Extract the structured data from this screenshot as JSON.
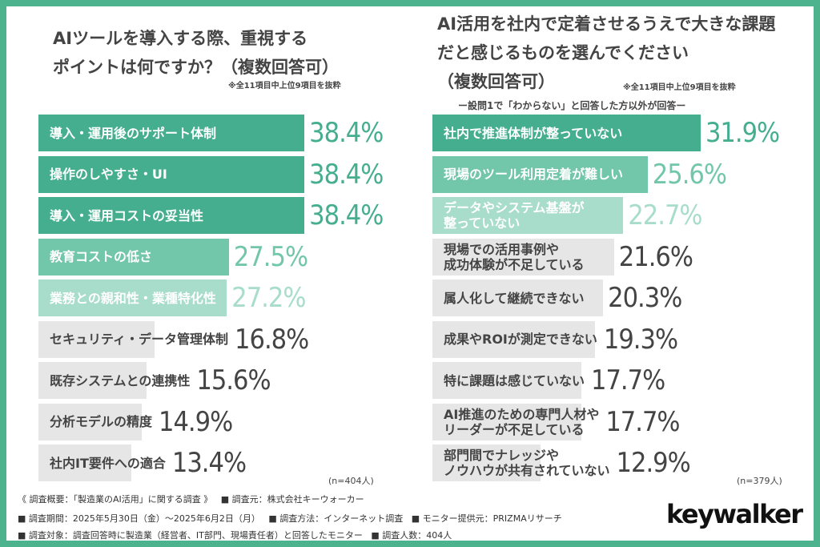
{
  "chart_data": [
    {
      "type": "bar",
      "orientation": "horizontal",
      "title": "AIツールを導入する際、重視する\nポイントは何ですか？（複数回答可）",
      "note": "※全11項目中上位9項目を抜粋",
      "sample": "(n=404人)",
      "categories": [
        "導入・運用後のサポート体制",
        "操作のしやすさ・UI",
        "導入・運用コストの妥当性",
        "教育コストの低さ",
        "業務との親和性・業種特化性",
        "セキュリティ・データ管理体制",
        "既存システムとの連携性",
        "分析モデルの精度",
        "社内IT要件への適合"
      ],
      "values": [
        38.4,
        38.4,
        38.4,
        27.5,
        27.2,
        16.8,
        15.6,
        14.9,
        13.4
      ],
      "labels": [
        "38.4%",
        "38.4%",
        "38.4%",
        "27.5%",
        "27.2%",
        "16.8%",
        "15.6%",
        "14.9%",
        "13.4%"
      ]
    },
    {
      "type": "bar",
      "orientation": "horizontal",
      "title": "AI活用を社内で定着させるうえで大きな課題\nだと感じるものを選んでください\n（複数回答可）",
      "note": "※全11項目中上位9項目を抜粋",
      "subtitle": "ー設問1で「わからない」と回答した方以外が回答ー",
      "sample": "(n=379人)",
      "categories": [
        "社内で推進体制が整っていない",
        "現場のツール利用定着が難しい",
        "データやシステム基盤が\n整っていない",
        "現場での活用事例や\n成功体験が不足している",
        "属人化して継続できない",
        "成果やROIが測定できない",
        "特に課題は感じていない",
        "AI推進のための専門人材や\nリーダーが不足している",
        "部門間でナレッジや\nノウハウが共有されていない"
      ],
      "values": [
        31.9,
        25.6,
        22.7,
        21.6,
        20.3,
        19.3,
        17.7,
        17.7,
        12.9
      ],
      "labels": [
        "31.9%",
        "25.6%",
        "22.7%",
        "21.6%",
        "20.3%",
        "19.3%",
        "17.7%",
        "17.7%",
        "12.9%"
      ]
    }
  ],
  "colors": {
    "frame": "#4db38e",
    "rank1": "#45ae8f",
    "rank2": "#72c6aa",
    "rank3": "#a8dccb",
    "other": "#e6e6e6",
    "text": "#444444"
  },
  "footer": {
    "line1a": "《 調査概要：「製造業のAI活用」に関する調査 》",
    "line1b": "■ 調査元：株式会社キーウォーカー",
    "line2a": "■ 調査期間：2025年5月30日（金）～2025年6月2日（月）",
    "line2b": "■ 調査方法：インターネット調査",
    "line2c": "■ モニター提供元：PRIZMAリサーチ",
    "line3a": "■ 調査対象：調査回答時に製造業（経営者、IT部門、現場責任者）と回答したモニター",
    "line3b": "■ 調査人数：404人",
    "logo": "keywalker"
  }
}
